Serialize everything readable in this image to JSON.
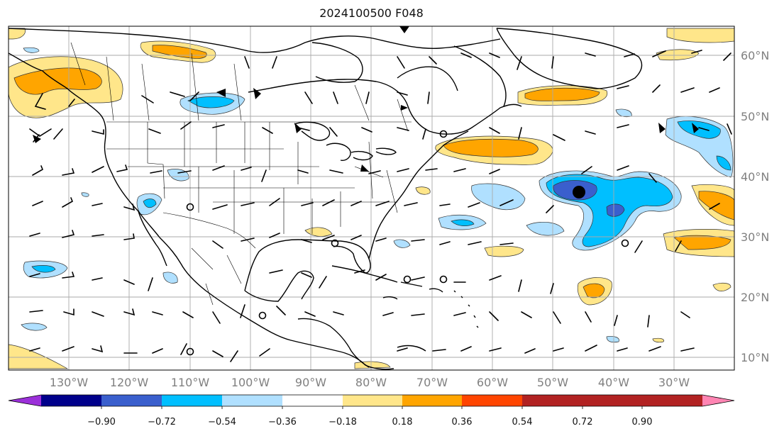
{
  "title": "2024100500 F048",
  "lat_labels": [
    "60°N",
    "50°N",
    "40°N",
    "30°N",
    "20°N",
    "10°N"
  ],
  "lon_labels": [
    "130°W",
    "120°W",
    "110°W",
    "100°W",
    "90°W",
    "80°W",
    "70°W",
    "60°W",
    "50°W",
    "40°W",
    "30°W"
  ],
  "colorbar": {
    "ticks": [
      "−0.90",
      "−0.72",
      "−0.54",
      "−0.36",
      "−0.18",
      "0.18",
      "0.36",
      "0.54",
      "0.72",
      "0.90"
    ],
    "colors": [
      "#9b30d9",
      "#00008b",
      "#3a5fcd",
      "#00bfff",
      "#b0e0ff",
      "#ffffff",
      "#ffe68a",
      "#ffa500",
      "#ff4500",
      "#b22222",
      "#ff85b3"
    ]
  },
  "map_colors": {
    "neg_light": "#b0e0ff",
    "neg_mid": "#00bfff",
    "neg_dark": "#3a5fcd",
    "pos_light": "#ffe68a",
    "pos_mid": "#ffa500"
  },
  "icons": [
    "wind-barb-icon",
    "low-pressure-center-icon",
    "circle-marker-icon"
  ]
}
